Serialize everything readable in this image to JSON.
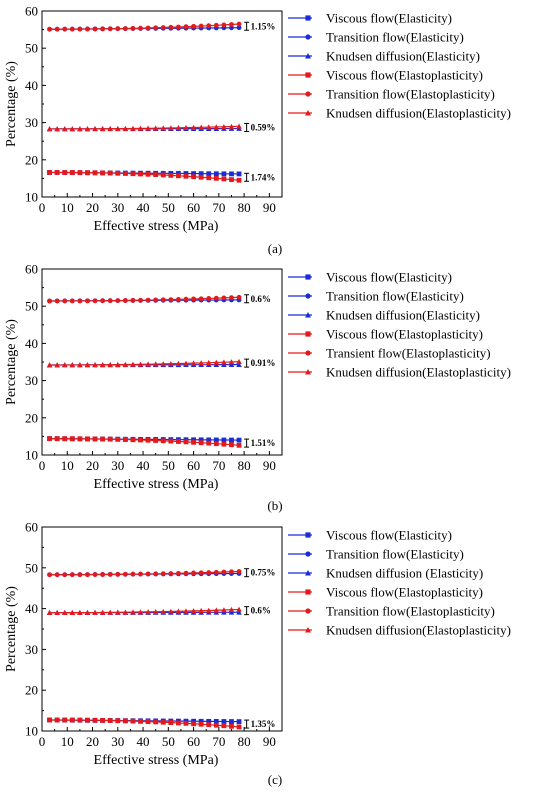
{
  "colors": {
    "elasticity": "#1a2bd8",
    "elastoplasticity": "#e31a1c",
    "axis": "#000000"
  },
  "chart_data": [
    {
      "type": "line",
      "panel_label": "(a)",
      "xlabel": "Effective stress (MPa)",
      "ylabel": "Percentage (%)",
      "xlim": [
        0,
        95
      ],
      "ylim": [
        10,
        60
      ],
      "xticks": [
        "0",
        "10",
        "20",
        "30",
        "40",
        "50",
        "60",
        "70",
        "80",
        "90"
      ],
      "yticks": [
        "10",
        "20",
        "30",
        "40",
        "50",
        "60"
      ],
      "x": [
        3,
        6,
        9,
        12,
        15,
        18,
        21,
        24,
        27,
        30,
        33,
        36,
        39,
        42,
        45,
        48,
        51,
        54,
        57,
        60,
        63,
        66,
        69,
        72,
        75,
        78
      ],
      "legend_position": "right",
      "series": [
        {
          "name": "Viscous flow(Elasticity)",
          "group": "elasticity",
          "marker": "square",
          "start": 16.6,
          "end": 16.2
        },
        {
          "name": "Transition flow(Elasticity)",
          "group": "elasticity",
          "marker": "circle",
          "start": 55.1,
          "end": 55.5
        },
        {
          "name": "Knudsen diffusion(Elasticity)",
          "group": "elasticity",
          "marker": "triangle",
          "start": 28.3,
          "end": 28.4
        },
        {
          "name": "Viscous flow(Elastoplasticity)",
          "group": "elastoplasticity",
          "marker": "square",
          "start": 16.6,
          "end": 14.5
        },
        {
          "name": "Transition flow(Elastoplasticity)",
          "group": "elastoplasticity",
          "marker": "circle",
          "start": 55.1,
          "end": 56.5
        },
        {
          "name": "Knudsen diffusion(Elastoplasticity)",
          "group": "elastoplasticity",
          "marker": "triangle",
          "start": 28.3,
          "end": 29.0
        }
      ],
      "annotations": [
        {
          "text": "1.15%",
          "y": 55.9
        },
        {
          "text": "0.59%",
          "y": 28.7
        },
        {
          "text": "1.74%",
          "y": 15.3
        }
      ]
    },
    {
      "type": "line",
      "panel_label": "(b)",
      "xlabel": "Effective stress (MPa)",
      "ylabel": "Percentage (%)",
      "xlim": [
        0,
        95
      ],
      "ylim": [
        10,
        60
      ],
      "xticks": [
        "0",
        "10",
        "20",
        "30",
        "40",
        "50",
        "60",
        "70",
        "80",
        "90"
      ],
      "yticks": [
        "10",
        "20",
        "30",
        "40",
        "50",
        "60"
      ],
      "x": [
        3,
        6,
        9,
        12,
        15,
        18,
        21,
        24,
        27,
        30,
        33,
        36,
        39,
        42,
        45,
        48,
        51,
        54,
        57,
        60,
        63,
        66,
        69,
        72,
        75,
        78
      ],
      "legend_position": "right",
      "series": [
        {
          "name": "Viscous flow(Elasticity)",
          "group": "elasticity",
          "marker": "square",
          "start": 14.4,
          "end": 14.0
        },
        {
          "name": "Transition flow(Elasticity)",
          "group": "elasticity",
          "marker": "circle",
          "start": 51.4,
          "end": 51.7
        },
        {
          "name": "Knudsen diffusion(Elasticity)",
          "group": "elasticity",
          "marker": "triangle",
          "start": 34.2,
          "end": 34.3
        },
        {
          "name": "Viscous flow(Elastoplasticity)",
          "group": "elastoplasticity",
          "marker": "square",
          "start": 14.4,
          "end": 12.6
        },
        {
          "name": "Transient flow(Elastoplasticity)",
          "group": "elastoplasticity",
          "marker": "circle",
          "start": 51.4,
          "end": 52.4
        },
        {
          "name": "Knudsen diffusion(Elastoplasticity)",
          "group": "elastoplasticity",
          "marker": "triangle",
          "start": 34.2,
          "end": 35.1
        }
      ],
      "annotations": [
        {
          "text": "0.6%",
          "y": 52.0
        },
        {
          "text": "0.91%",
          "y": 34.7
        },
        {
          "text": "1.51%",
          "y": 13.2
        }
      ]
    },
    {
      "type": "line",
      "panel_label": "(c)",
      "xlabel": "Effective stress (MPa)",
      "ylabel": "Percentage (%)",
      "xlim": [
        0,
        95
      ],
      "ylim": [
        10,
        60
      ],
      "xticks": [
        "0",
        "10",
        "20",
        "30",
        "40",
        "50",
        "60",
        "70",
        "80",
        "90"
      ],
      "yticks": [
        "10",
        "20",
        "30",
        "40",
        "50",
        "60"
      ],
      "x": [
        3,
        6,
        9,
        12,
        15,
        18,
        21,
        24,
        27,
        30,
        33,
        36,
        39,
        42,
        45,
        48,
        51,
        54,
        57,
        60,
        63,
        66,
        69,
        72,
        75,
        78
      ],
      "legend_position": "right",
      "series": [
        {
          "name": "Viscous flow(Elasticity)",
          "group": "elasticity",
          "marker": "square",
          "start": 12.7,
          "end": 12.3
        },
        {
          "name": "Transition flow(Elasticity)",
          "group": "elasticity",
          "marker": "circle",
          "start": 48.3,
          "end": 48.6
        },
        {
          "name": "Knudsen diffusion (Elasticity)",
          "group": "elasticity",
          "marker": "triangle",
          "start": 39.0,
          "end": 39.1
        },
        {
          "name": "Viscous flow(Elastoplasticity)",
          "group": "elastoplasticity",
          "marker": "square",
          "start": 12.7,
          "end": 11.0
        },
        {
          "name": "Transition flow(Elastoplasticity)",
          "group": "elastoplasticity",
          "marker": "circle",
          "start": 48.3,
          "end": 49.1
        },
        {
          "name": "Knudsen diffusion(Elastoplasticity)",
          "group": "elastoplasticity",
          "marker": "triangle",
          "start": 39.0,
          "end": 39.8
        }
      ],
      "annotations": [
        {
          "text": "0.75%",
          "y": 48.8
        },
        {
          "text": "0.6%",
          "y": 39.5
        },
        {
          "text": "1.35%",
          "y": 11.7
        }
      ]
    }
  ]
}
